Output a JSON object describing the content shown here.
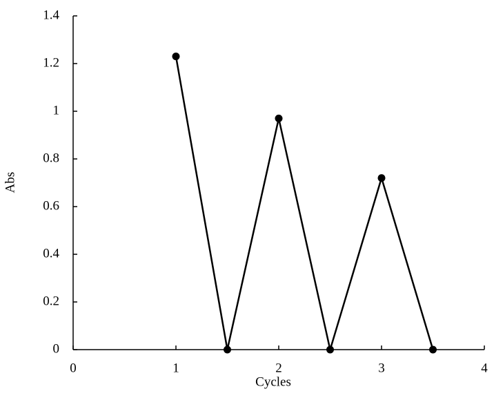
{
  "chart_data": {
    "type": "line",
    "x_label": "Cycles",
    "y_label": "Abs",
    "x": [
      1,
      1.5,
      2,
      2.5,
      3,
      3.5
    ],
    "series": [
      {
        "color": "#000000",
        "values": [
          1.23,
          0,
          0.97,
          0,
          0.72,
          0
        ]
      }
    ],
    "xlim": [
      0,
      4
    ],
    "xticks": [
      0,
      1,
      2,
      3,
      4
    ],
    "ylim": [
      0,
      1.4
    ],
    "yticks": [
      0,
      0.2,
      0.4,
      0.6,
      0.8,
      1,
      1.2,
      1.4
    ],
    "markers": true,
    "grid": false
  }
}
